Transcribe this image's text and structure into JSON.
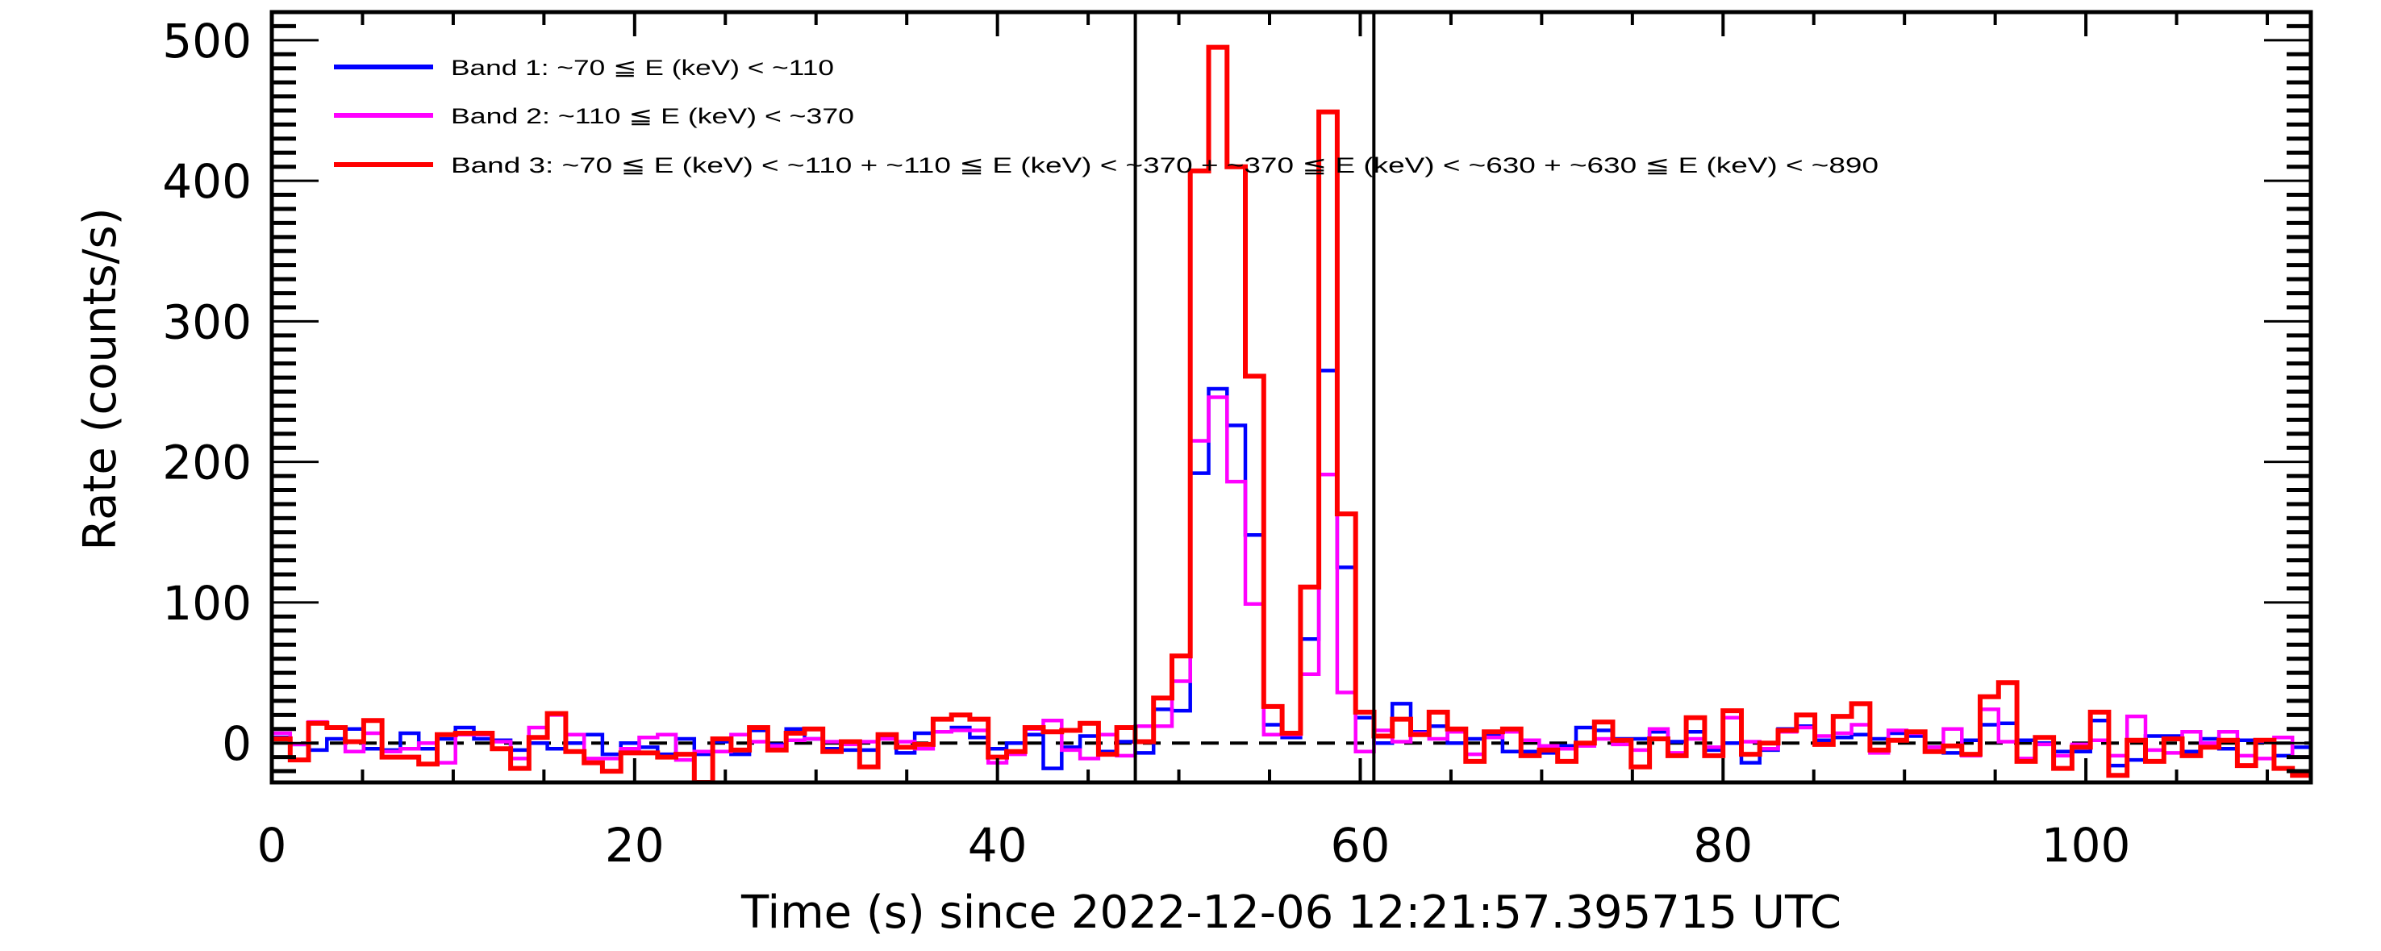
{
  "chart_data": {
    "type": "line",
    "style": "histogram-step",
    "title": "",
    "xlabel": "Time (s) since 2022-12-06 12:21:57.395715 UTC",
    "ylabel": "Rate (counts/s)",
    "xlim": [
      0,
      112.4
    ],
    "ylim": [
      -28,
      520
    ],
    "xticks": [
      0,
      20,
      40,
      60,
      80,
      100
    ],
    "xtick_labels": [
      "0",
      "20",
      "40",
      "60",
      "80",
      "100"
    ],
    "x_minor_step": 5,
    "yticks": [
      0,
      100,
      200,
      300,
      400,
      500
    ],
    "ytick_labels": [
      "0",
      "100",
      "200",
      "300",
      "400",
      "500"
    ],
    "y_minor_step": 10,
    "grid": false,
    "legend_position": "top-left",
    "bin_start": 0,
    "bin_width": 1.0126,
    "reference_hline": 0,
    "vertical_markers": [
      47.6,
      60.75
    ],
    "series": [
      {
        "name": "Band 1: ~70 ≦ E (keV) < ~110",
        "color": "#0000ff",
        "values": [
          4,
          -1,
          -5,
          3,
          10,
          -4,
          -5,
          7,
          -4,
          3,
          11,
          3,
          2,
          -5,
          0,
          -4,
          0,
          6,
          -8,
          0,
          -3,
          -8,
          3,
          -8,
          1,
          -8,
          9,
          -1,
          10,
          3,
          -4,
          -5,
          -5,
          4,
          -7,
          7,
          8,
          11,
          4,
          -4,
          0,
          6,
          -18,
          -3,
          5,
          -6,
          1,
          -7,
          24,
          23,
          192,
          252,
          226,
          148,
          13,
          4,
          74,
          265,
          125,
          18,
          0,
          28,
          8,
          12,
          0,
          3,
          6,
          -6,
          -6,
          -7,
          -2,
          11,
          9,
          3,
          3,
          8,
          1,
          8,
          -5,
          0,
          -14,
          -5,
          10,
          12,
          2,
          4,
          6,
          3,
          7,
          5,
          -3,
          -7,
          2,
          13,
          14,
          2,
          0,
          -6,
          -6,
          16,
          -16,
          -12,
          5,
          5,
          -6,
          3,
          -4,
          2,
          1,
          -9,
          -3
        ]
      },
      {
        "name": "Band 2: ~110 ≦ E (keV) < ~370",
        "color": "#ff00ff",
        "values": [
          7,
          -1,
          15,
          11,
          -6,
          7,
          -6,
          -4,
          0,
          -14,
          6,
          6,
          1,
          -11,
          11,
          20,
          6,
          -11,
          -11,
          -4,
          4,
          6,
          -12,
          -6,
          -6,
          6,
          1,
          -2,
          2,
          3,
          1,
          -1,
          1,
          3,
          1,
          -4,
          8,
          9,
          9,
          -14,
          -8,
          10,
          16,
          -5,
          -11,
          6,
          -9,
          12,
          12,
          44,
          215,
          246,
          186,
          99,
          6,
          6,
          49,
          191,
          36,
          -6,
          9,
          1,
          7,
          3,
          8,
          -8,
          4,
          8,
          2,
          -2,
          -4,
          -2,
          3,
          -1,
          -5,
          10,
          -7,
          3,
          -3,
          18,
          1,
          -4,
          8,
          11,
          5,
          7,
          13,
          -7,
          9,
          7,
          -3,
          10,
          -9,
          24,
          1,
          -11,
          -1,
          -9,
          -1,
          2,
          -9,
          19,
          -5,
          -7,
          8,
          0,
          8,
          -9,
          -11,
          4,
          -10
        ]
      },
      {
        "name": "Band 3: ~70 ≦ E (keV) < ~110 + ~110 ≦ E (keV) < ~370 + ~370 ≦ E (keV) < ~630 + ~630 ≦ E (keV) < ~890",
        "color": "#ff0000",
        "values": [
          3,
          -12,
          14,
          11,
          1,
          16,
          -10,
          -10,
          -15,
          6,
          7,
          7,
          -4,
          -18,
          4,
          21,
          -6,
          -14,
          -20,
          -7,
          -7,
          -10,
          -8,
          -28,
          3,
          -5,
          11,
          -5,
          7,
          10,
          -6,
          1,
          -17,
          6,
          -3,
          -1,
          17,
          20,
          17,
          -10,
          -6,
          11,
          8,
          9,
          14,
          -8,
          11,
          1,
          32,
          62,
          407,
          495,
          410,
          261,
          26,
          7,
          111,
          449,
          163,
          22,
          5,
          17,
          6,
          22,
          10,
          -13,
          8,
          10,
          -9,
          -5,
          -13,
          0,
          15,
          2,
          -17,
          3,
          -9,
          18,
          -9,
          23,
          -8,
          0,
          9,
          20,
          -1,
          19,
          28,
          -5,
          2,
          8,
          -6,
          -2,
          -8,
          33,
          43,
          -13,
          4,
          -18,
          -3,
          22,
          -23,
          2,
          -13,
          3,
          -9,
          -3,
          2,
          -16,
          2,
          -18,
          -23
        ]
      }
    ]
  }
}
